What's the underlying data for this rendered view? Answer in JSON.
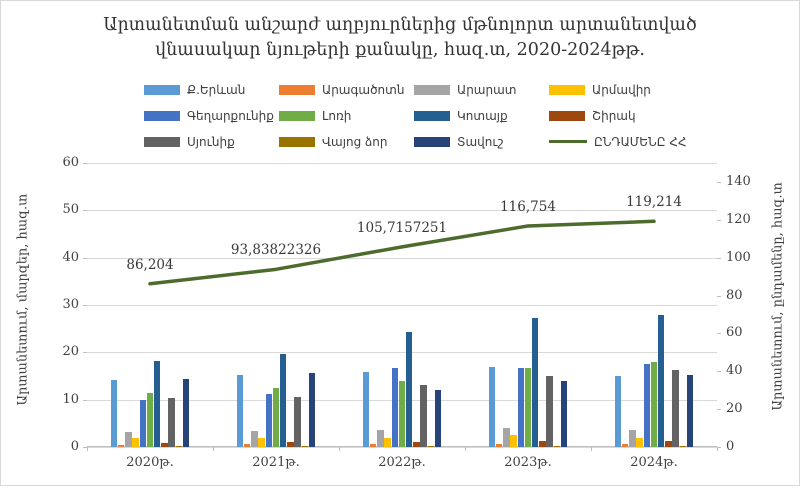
{
  "title": {
    "line1": "Արտանետման անշարժ աղբյուրներից մթնոլորտ արտանետված",
    "line2": "վնասակար նյութերի քանակը, հազ.տ, 2020-2024թթ."
  },
  "chart_data": {
    "type": "bar+line",
    "categories": [
      "2020թ.",
      "2021թ.",
      "2022թ.",
      "2023թ.",
      "2024թ."
    ],
    "bar_series": [
      {
        "name": "Ք.Երևան",
        "color": "#5B9BD5",
        "values": [
          14.2,
          15.2,
          15.9,
          16.9,
          15.1
        ]
      },
      {
        "name": "Արագածոտն",
        "color": "#ED7D31",
        "values": [
          0.5,
          0.6,
          0.6,
          0.7,
          0.6
        ]
      },
      {
        "name": "Արարատ",
        "color": "#A5A5A5",
        "values": [
          3.1,
          3.4,
          3.5,
          4.0,
          3.6
        ]
      },
      {
        "name": "Արմավիր",
        "color": "#FFC000",
        "values": [
          1.8,
          1.8,
          1.9,
          2.5,
          2.0
        ]
      },
      {
        "name": "Գեղարքունիք",
        "color": "#4472C4",
        "values": [
          9.9,
          11.2,
          16.6,
          16.6,
          17.5
        ]
      },
      {
        "name": "Լոռի",
        "color": "#70AD47",
        "values": [
          11.5,
          12.5,
          14.0,
          16.6,
          17.9
        ]
      },
      {
        "name": "Կոտայք",
        "color": "#255E91",
        "values": [
          18.1,
          19.7,
          24.4,
          27.2,
          27.8
        ]
      },
      {
        "name": "Շիրակ",
        "color": "#9E480E",
        "values": [
          0.9,
          1.1,
          1.1,
          1.3,
          1.2
        ]
      },
      {
        "name": "Սյունիք",
        "color": "#636363",
        "values": [
          10.3,
          10.6,
          13.0,
          15.0,
          16.3
        ]
      },
      {
        "name": "Վայոց ձոր",
        "color": "#997300",
        "values": [
          0.1,
          0.2,
          0.3,
          0.2,
          0.2
        ]
      },
      {
        "name": "Տավուշ",
        "color": "#264478",
        "values": [
          14.4,
          15.6,
          12.0,
          14.0,
          15.3
        ]
      }
    ],
    "line_series": {
      "name": "ԸՆԴԱՄԵՆԸ ՀՀ",
      "color": "#4E6B2E",
      "values": [
        86.204,
        93.838,
        105.716,
        116.754,
        119.214
      ],
      "labels": [
        "86,204",
        "93,83822326",
        "105,7157251",
        "116,754",
        "119,214"
      ]
    },
    "left_axis": {
      "title": "Արտանետում, մարզեր, հազ.տ",
      "min": 0,
      "max": 60,
      "step": 10
    },
    "right_axis": {
      "title": "Արտանետում, ընդամենը, հազ.տ",
      "min": 0,
      "scale_max": 150,
      "step": 20,
      "max_label": 140
    },
    "legend_position": "top",
    "grid": true
  }
}
